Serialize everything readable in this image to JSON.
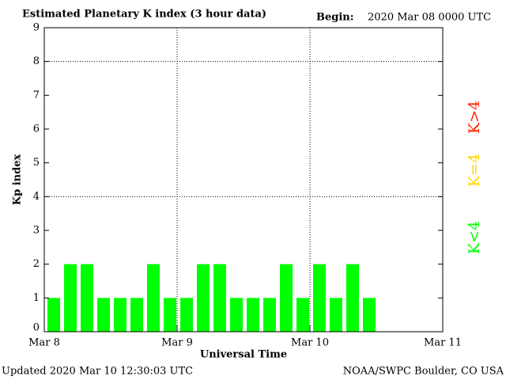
{
  "chart_data": {
    "type": "bar",
    "title": "Estimated Planetary K index (3 hour data)",
    "begin_label": "Begin:",
    "begin_value": "2020 Mar 08 0000 UTC",
    "ylabel": "Kp index",
    "xlabel": "Universal Time",
    "updated": "Updated 2020 Mar 10 12:30:03 UTC",
    "source": "NOAA/SWPC Boulder, CO USA",
    "x": [
      0,
      3,
      6,
      9,
      12,
      15,
      18,
      21,
      24,
      27,
      30,
      33,
      36,
      39,
      42,
      45,
      48,
      51,
      54,
      57
    ],
    "values": [
      1,
      2,
      2,
      1,
      1,
      1,
      2,
      1,
      1,
      2,
      2,
      1,
      1,
      1,
      2,
      1,
      2,
      1,
      2,
      1
    ],
    "color": "#00ff00",
    "xlim": [
      0,
      72
    ],
    "xticks": [
      {
        "value": 0,
        "label": "Mar 8"
      },
      {
        "value": 24,
        "label": "Mar 9"
      },
      {
        "value": 48,
        "label": "Mar 10"
      },
      {
        "value": 72,
        "label": "Mar 11"
      }
    ],
    "ylim": [
      0,
      9
    ],
    "yticks": [
      0,
      1,
      2,
      3,
      4,
      5,
      6,
      7,
      8,
      9
    ],
    "grid_y": [
      4,
      8
    ],
    "grid_x": [
      24,
      48
    ],
    "legend": [
      {
        "label": "K<4",
        "color": "#00ff00"
      },
      {
        "label": "K=4",
        "color": "#ffd700"
      },
      {
        "label": "K>4",
        "color": "#ff2000"
      }
    ]
  }
}
